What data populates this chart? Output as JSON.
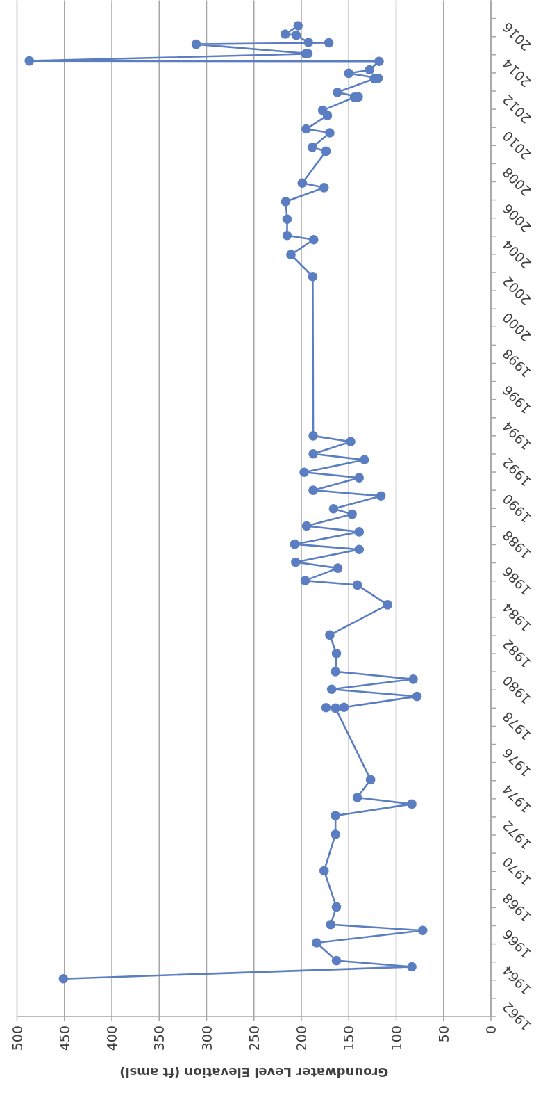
{
  "chart_data": {
    "type": "line",
    "xlabel": "Groundwater Level Elevation (ft amsl)",
    "x": [
      451,
      83.5,
      163,
      184,
      72,
      169,
      163,
      176,
      164,
      164,
      83.5,
      141,
      127,
      164,
      174,
      155,
      78,
      168,
      82,
      164,
      163,
      170,
      109,
      141,
      196,
      161.5,
      206,
      139,
      207,
      139,
      194.5,
      146.5,
      166,
      116,
      187.5,
      139,
      197,
      133.5,
      187.5,
      148,
      187.5,
      188,
      211,
      187,
      215,
      215,
      216.5,
      176,
      199,
      174,
      188.5,
      170,
      195,
      172.5,
      177.5,
      144,
      140,
      162,
      123,
      119,
      150,
      128,
      118,
      487,
      195.5,
      193,
      311,
      171,
      192.5,
      205.5,
      217,
      203.5
    ],
    "series": [
      {
        "color": "#5b7ec3",
        "values": [
          1964.08,
          1964.74,
          1965.08,
          1966.06,
          1966.74,
          1967.07,
          1968.04,
          1970.03,
          1972.04,
          1973.07,
          1973.71,
          1974.07,
          1975.05,
          1979.0,
          1979.02,
          1979.04,
          1979.64,
          1980.04,
          1980.59,
          1981.01,
          1982.01,
          1983.02,
          1984.69,
          1985.78,
          1986.02,
          1986.71,
          1987.04,
          1987.74,
          1988.03,
          1988.71,
          1989.03,
          1989.68,
          1989.98,
          1990.69,
          1991.0,
          1991.69,
          1991.99,
          1992.68,
          1993.01,
          1993.68,
          1994.0,
          2002.78,
          2003.99,
          2004.81,
          2005.04,
          2005.94,
          2006.91,
          2007.68,
          2007.93,
          2009.69,
          2009.9,
          2010.7,
          2010.91,
          2011.66,
          2011.94,
          2012.66,
          2012.68,
          2012.93,
          2013.68,
          2013.71,
          2013.98,
          2014.17,
          2014.64,
          2014.66,
          2015.05,
          2015.07,
          2015.58,
          2015.66,
          2015.68,
          2016.08,
          2016.14,
          2016.6
        ]
      }
    ],
    "ylim": [
      1962,
      2018
    ],
    "yticks": [
      1962,
      {
        "value": 1963,
        "label": null
      },
      1964,
      {
        "value": 1965,
        "label": null
      },
      1966,
      {
        "value": 1967,
        "label": null
      },
      1968,
      {
        "value": 1969,
        "label": null
      },
      1970,
      {
        "value": 1971,
        "label": null
      },
      1972,
      {
        "value": 1973,
        "label": null
      },
      1974,
      {
        "value": 1975,
        "label": null
      },
      1976,
      {
        "value": 1977,
        "label": null
      },
      1978,
      {
        "value": 1979,
        "label": null
      },
      1980,
      {
        "value": 1981,
        "label": null
      },
      1982,
      {
        "value": 1983,
        "label": null
      },
      1984,
      {
        "value": 1985,
        "label": null
      },
      1986,
      {
        "value": 1987,
        "label": null
      },
      1988,
      {
        "value": 1989,
        "label": null
      },
      1990,
      {
        "value": 1991,
        "label": null
      },
      1992,
      {
        "value": 1993,
        "label": null
      },
      1994,
      {
        "value": 1995,
        "label": null
      },
      1996,
      {
        "value": 1997,
        "label": null
      },
      1998,
      {
        "value": 1999,
        "label": null
      },
      2000,
      {
        "value": 2001,
        "label": null
      },
      2002,
      {
        "value": 2003,
        "label": null
      },
      2004,
      {
        "value": 2005,
        "label": null
      },
      2006,
      {
        "value": 2007,
        "label": null
      },
      2008,
      {
        "value": 2009,
        "label": null
      },
      2010,
      {
        "value": 2011,
        "label": null
      },
      2012,
      {
        "value": 2013,
        "label": null
      },
      2014,
      {
        "value": 2015,
        "label": null
      },
      2016,
      {
        "value": 2017,
        "label": null
      }
    ],
    "xlim": [
      500,
      0
    ],
    "xticks": [
      500,
      450,
      400,
      350,
      300,
      250,
      200,
      150,
      100,
      50,
      0
    ],
    "grid": "x",
    "marker": "circle",
    "line_style": "solid"
  }
}
